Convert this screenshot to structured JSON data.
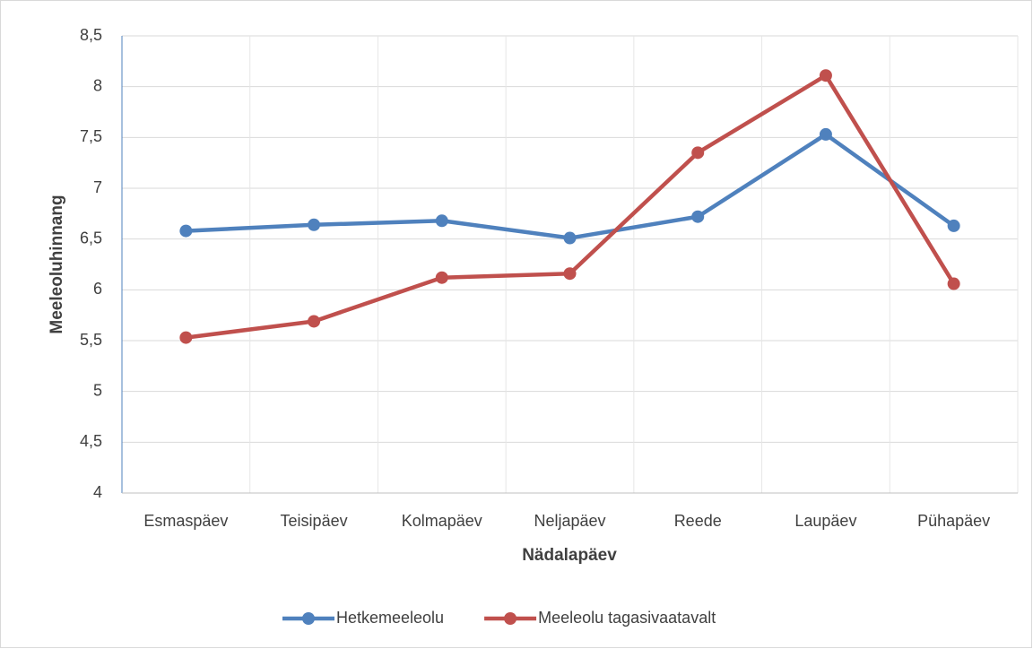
{
  "chart_data": {
    "type": "line",
    "categories": [
      "Esmaspäev",
      "Teisipäev",
      "Kolmapäev",
      "Neljapäev",
      "Reede",
      "Laupäev",
      "Pühapäev"
    ],
    "series": [
      {
        "name": "Hetkemeeleolu",
        "color": "#4f81bd",
        "values": [
          6.58,
          6.64,
          6.68,
          6.51,
          6.72,
          7.53,
          6.63
        ]
      },
      {
        "name": "Meeleolu tagasivaatavalt",
        "color": "#c0504d",
        "values": [
          5.53,
          5.69,
          6.12,
          6.16,
          7.35,
          8.11,
          6.06
        ]
      }
    ],
    "x_label": "Nädalapäev",
    "y_label": "Meeleoluhinnang",
    "ylim": [
      4,
      8.5
    ],
    "yticks": [
      4,
      {
        "value": 4.5,
        "label": "4,5"
      },
      5,
      {
        "value": 5.5,
        "label": "5,5"
      },
      6,
      {
        "value": 6.5,
        "label": "6,5"
      },
      7,
      {
        "value": 7.5,
        "label": "7,5"
      },
      8,
      {
        "value": 8.5,
        "label": "8,5"
      }
    ],
    "grid": true,
    "legend": "bottom"
  }
}
